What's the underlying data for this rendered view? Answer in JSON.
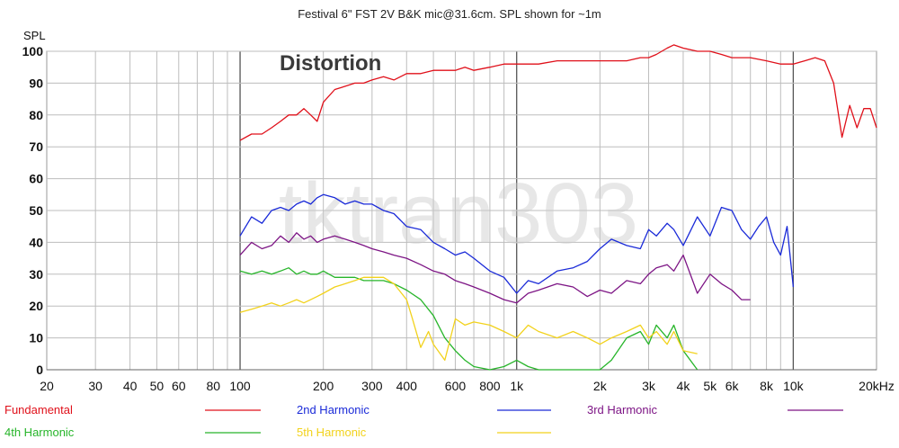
{
  "chart_data": {
    "type": "line",
    "title": "Festival 6\" FST 2V B&K mic@31.6cm. SPL shown for ~1m",
    "ylabel": "SPL",
    "xlabel": "",
    "xscale": "log",
    "xlim": [
      20,
      20000
    ],
    "ylim": [
      0,
      100
    ],
    "grid": true,
    "legend_placement": "bottom",
    "xticks": [
      {
        "value": 20,
        "label": "20"
      },
      {
        "value": 30,
        "label": "30"
      },
      {
        "value": 40,
        "label": "40"
      },
      {
        "value": 50,
        "label": "50"
      },
      {
        "value": 60,
        "label": "60"
      },
      {
        "value": 80,
        "label": "80"
      },
      {
        "value": 100,
        "label": "100"
      },
      {
        "value": 200,
        "label": "200"
      },
      {
        "value": 300,
        "label": "300"
      },
      {
        "value": 400,
        "label": "400"
      },
      {
        "value": 600,
        "label": "600"
      },
      {
        "value": 800,
        "label": "800"
      },
      {
        "value": 1000,
        "label": "1k"
      },
      {
        "value": 2000,
        "label": "2k"
      },
      {
        "value": 3000,
        "label": "3k"
      },
      {
        "value": 4000,
        "label": "4k"
      },
      {
        "value": 5000,
        "label": "5k"
      },
      {
        "value": 6000,
        "label": "6k"
      },
      {
        "value": 8000,
        "label": "8k"
      },
      {
        "value": 10000,
        "label": "10k"
      },
      {
        "value": 20000,
        "label": "20kHz"
      }
    ],
    "yticks": [
      {
        "value": 0,
        "label": "0"
      },
      {
        "value": 10,
        "label": "10"
      },
      {
        "value": 20,
        "label": "20"
      },
      {
        "value": 30,
        "label": "30"
      },
      {
        "value": 40,
        "label": "40"
      },
      {
        "value": 50,
        "label": "50"
      },
      {
        "value": 60,
        "label": "60"
      },
      {
        "value": 70,
        "label": "70"
      },
      {
        "value": 80,
        "label": "80"
      },
      {
        "value": 90,
        "label": "90"
      },
      {
        "value": 100,
        "label": "100"
      }
    ],
    "annotations": [
      "Distortion"
    ],
    "watermark": "tktran303",
    "series": [
      {
        "name": "Fundamental",
        "color": "#e0101a",
        "x": [
          100,
          110,
          120,
          130,
          140,
          150,
          160,
          170,
          180,
          190,
          200,
          220,
          240,
          260,
          280,
          300,
          330,
          360,
          400,
          450,
          500,
          550,
          600,
          650,
          700,
          800,
          900,
          1000,
          1100,
          1200,
          1400,
          1600,
          1800,
          2000,
          2200,
          2500,
          2800,
          3000,
          3200,
          3500,
          3700,
          4000,
          4500,
          5000,
          5500,
          6000,
          7000,
          8000,
          9000,
          10000,
          11000,
          12000,
          13000,
          14000,
          15000,
          16000,
          17000,
          18000,
          19000,
          20000
        ],
        "y": [
          72,
          74,
          74,
          76,
          78,
          80,
          80,
          82,
          80,
          78,
          84,
          88,
          89,
          90,
          90,
          91,
          92,
          91,
          93,
          93,
          94,
          94,
          94,
          95,
          94,
          95,
          96,
          96,
          96,
          96,
          97,
          97,
          97,
          97,
          97,
          97,
          98,
          98,
          99,
          101,
          102,
          101,
          100,
          100,
          99,
          98,
          98,
          97,
          96,
          96,
          97,
          98,
          97,
          90,
          73,
          83,
          76,
          82,
          82,
          76
        ]
      },
      {
        "name": "2nd Harmonic",
        "color": "#1a2ad8",
        "x": [
          100,
          110,
          120,
          130,
          140,
          150,
          160,
          170,
          180,
          190,
          200,
          220,
          240,
          260,
          280,
          300,
          330,
          360,
          400,
          450,
          500,
          550,
          600,
          650,
          700,
          800,
          900,
          1000,
          1100,
          1200,
          1400,
          1600,
          1800,
          2000,
          2200,
          2500,
          2800,
          3000,
          3200,
          3500,
          3700,
          4000,
          4500,
          5000,
          5500,
          6000,
          6500,
          7000,
          7500,
          8000,
          8500,
          9000,
          9500,
          10000
        ],
        "y": [
          42,
          48,
          46,
          50,
          51,
          50,
          52,
          53,
          52,
          54,
          55,
          54,
          52,
          53,
          52,
          52,
          50,
          49,
          45,
          44,
          40,
          38,
          36,
          37,
          35,
          31,
          29,
          24,
          28,
          27,
          31,
          32,
          34,
          38,
          41,
          39,
          38,
          44,
          42,
          46,
          44,
          39,
          48,
          42,
          51,
          50,
          44,
          41,
          45,
          48,
          40,
          36,
          45,
          26
        ]
      },
      {
        "name": "3rd Harmonic",
        "color": "#7d1585",
        "x": [
          100,
          110,
          120,
          130,
          140,
          150,
          160,
          170,
          180,
          190,
          200,
          220,
          240,
          260,
          280,
          300,
          330,
          360,
          400,
          450,
          500,
          550,
          600,
          650,
          700,
          800,
          900,
          1000,
          1100,
          1200,
          1400,
          1600,
          1800,
          2000,
          2200,
          2500,
          2800,
          3000,
          3200,
          3500,
          3700,
          4000,
          4500,
          5000,
          5500,
          6000,
          6500,
          7000
        ],
        "y": [
          36,
          40,
          38,
          39,
          42,
          40,
          43,
          41,
          42,
          40,
          41,
          42,
          41,
          40,
          39,
          38,
          37,
          36,
          35,
          33,
          31,
          30,
          28,
          27,
          26,
          24,
          22,
          21,
          24,
          25,
          27,
          26,
          23,
          25,
          24,
          28,
          27,
          30,
          32,
          33,
          31,
          36,
          24,
          30,
          27,
          25,
          22,
          22
        ]
      },
      {
        "name": "4th Harmonic",
        "color": "#27b52a",
        "x": [
          100,
          110,
          120,
          130,
          140,
          150,
          160,
          170,
          180,
          190,
          200,
          220,
          240,
          260,
          280,
          300,
          330,
          360,
          400,
          450,
          500,
          550,
          600,
          650,
          700,
          800,
          900,
          1000,
          1100,
          1200,
          1400,
          1600,
          1800,
          2000,
          2200,
          2500,
          2800,
          3000,
          3200,
          3500,
          3700,
          4000,
          4500
        ],
        "y": [
          31,
          30,
          31,
          30,
          31,
          32,
          30,
          31,
          30,
          30,
          31,
          29,
          29,
          29,
          28,
          28,
          28,
          27,
          25,
          22,
          17,
          10,
          6,
          3,
          1,
          0,
          1,
          3,
          1,
          0,
          0,
          0,
          0,
          0,
          3,
          10,
          12,
          8,
          14,
          10,
          14,
          6,
          0
        ]
      },
      {
        "name": "5th Harmonic",
        "color": "#f2d21c",
        "x": [
          100,
          110,
          120,
          130,
          140,
          150,
          160,
          170,
          180,
          190,
          200,
          220,
          240,
          260,
          280,
          300,
          330,
          360,
          400,
          420,
          450,
          480,
          500,
          550,
          600,
          650,
          700,
          800,
          900,
          1000,
          1100,
          1200,
          1400,
          1600,
          1800,
          2000,
          2200,
          2500,
          2800,
          3000,
          3200,
          3500,
          3700,
          4000,
          4500
        ],
        "y": [
          18,
          19,
          20,
          21,
          20,
          21,
          22,
          21,
          22,
          23,
          24,
          26,
          27,
          28,
          29,
          29,
          29,
          27,
          22,
          16,
          7,
          12,
          8,
          3,
          16,
          14,
          15,
          14,
          12,
          10,
          14,
          12,
          10,
          12,
          10,
          8,
          10,
          12,
          14,
          10,
          12,
          8,
          12,
          6,
          5
        ]
      }
    ]
  }
}
